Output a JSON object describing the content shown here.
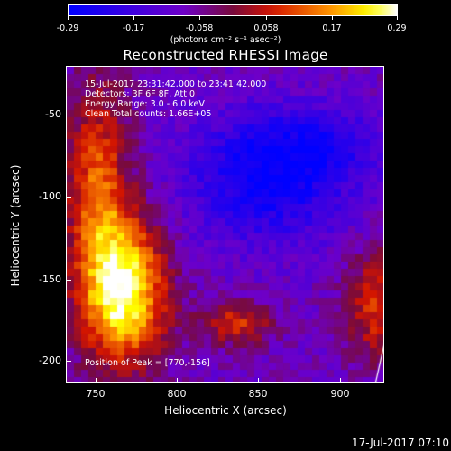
{
  "colorbar": {
    "ticks": [
      "-0.29",
      "-0.17",
      "-0.058",
      "0.058",
      "0.17",
      "0.29"
    ],
    "units": "(photons cm⁻² s⁻¹ asec⁻²)"
  },
  "title": "Reconstructed RHESSI Image",
  "info": {
    "line1": "15-Jul-2017 23:31:42.000 to 23:41:42.000",
    "line2": "Detectors: 3F 6F 8F, Att 0",
    "line3": "Energy Range: 3.0 - 6.0 keV",
    "line4": "Clean     Total counts: 1.66E+05"
  },
  "peak": "Position of Peak = [770,-156]",
  "axes": {
    "xlabel": "Heliocentric X (arcsec)",
    "ylabel": "Heliocentric Y (arcsec)",
    "xticks": [
      "750",
      "800",
      "850",
      "900"
    ],
    "yticks": [
      "-50",
      "-100",
      "-150",
      "-200"
    ]
  },
  "footer": "17-Jul-2017 07:10",
  "colors": {
    "low": "#0000ff",
    "mid": "#800080",
    "high": "#ffff00",
    "top": "#ffffff"
  }
}
